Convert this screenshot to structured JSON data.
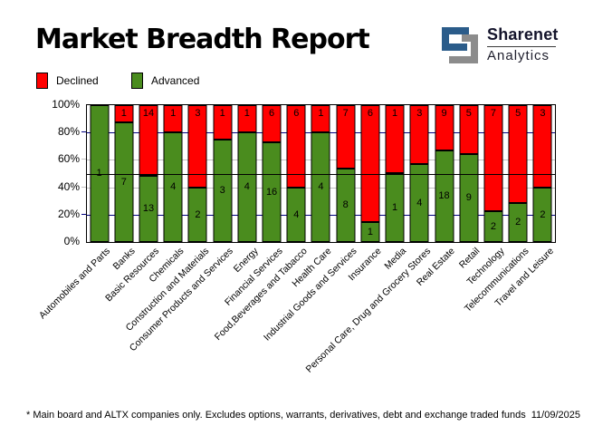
{
  "title": "Market Breadth Report",
  "logo": {
    "name": "Sharenet",
    "sub": "Analytics",
    "mark_blue": "#2B5C8A",
    "mark_gray": "#8C8C8C"
  },
  "legend": [
    {
      "label": "Declined",
      "color": "#FF0000"
    },
    {
      "label": "Advanced",
      "color": "#4A8C1E"
    }
  ],
  "footer": {
    "note": "* Main board and ALTX companies only. Excludes options, warrants, derivatives, debt and exchange traded funds",
    "date": "11/09/2025"
  },
  "chart_data": {
    "type": "bar",
    "stacked": true,
    "note": "Each bar normalized to 100%; counts shown as labels inside segments",
    "categories": [
      "Automobiles and Parts",
      "Banks",
      "Basic Resources",
      "Chemicals",
      "Construction and Materials",
      "Consumer Products and Services",
      "Energy",
      "Financial Services",
      "Food,Beverages and Tabacco",
      "Health Care",
      "Industrial Goods and Services",
      "Insurance",
      "Media",
      "Personal Care, Drug and Grocery Stores",
      "Real Estate",
      "Retail",
      "Technology",
      "Telecommunications",
      "Travel and Leisure"
    ],
    "series": [
      {
        "name": "Advanced",
        "color": "#4A8C1E",
        "values": [
          1,
          7,
          13,
          4,
          2,
          3,
          4,
          16,
          4,
          4,
          8,
          1,
          1,
          4,
          18,
          9,
          2,
          2,
          2
        ]
      },
      {
        "name": "Declined",
        "color": "#FF0000",
        "values": [
          0,
          1,
          14,
          1,
          3,
          1,
          1,
          6,
          6,
          1,
          7,
          6,
          1,
          3,
          9,
          5,
          7,
          5,
          3
        ]
      }
    ],
    "ylabel": "",
    "xlabel": "",
    "ylim": [
      0,
      100
    ],
    "y_ticks": [
      "100%",
      "80%",
      "60%",
      "40%",
      "20%",
      "0%"
    ],
    "gridlines": [
      {
        "pct": 80,
        "color": "#000080"
      },
      {
        "pct": 60,
        "color": "#C0C0C0"
      },
      {
        "pct": 40,
        "color": "#C0C0C0"
      },
      {
        "pct": 20,
        "color": "#000080"
      }
    ],
    "midline": {
      "pct": 50,
      "color": "#000000"
    },
    "legend_position": "top-left",
    "grid": "partial"
  }
}
